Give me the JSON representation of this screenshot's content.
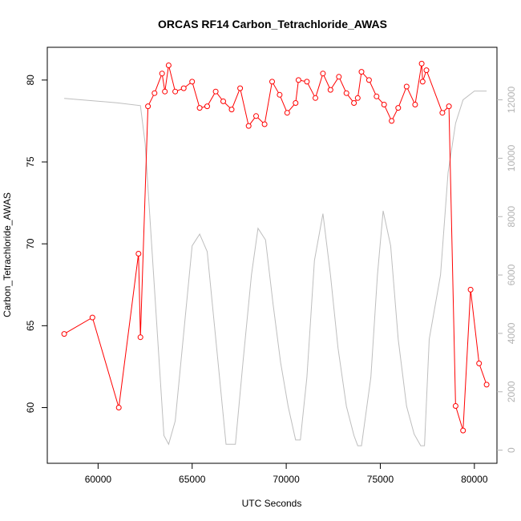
{
  "chart_data": {
    "type": "line",
    "title": "ORCAS RF14 Carbon_Tetrachloride_AWAS",
    "xlabel": "UTC Seconds",
    "ylabel": "Carbon_Tetrachloride_AWAS",
    "xlim": [
      57300,
      81200
    ],
    "ylim": [
      56.6,
      82.0
    ],
    "y2lim": [
      -450,
      13800
    ],
    "x_ticks": [
      60000,
      65000,
      70000,
      75000,
      80000
    ],
    "y_ticks": [
      60,
      65,
      70,
      75,
      80
    ],
    "y2_ticks": [
      0,
      2000,
      4000,
      6000,
      8000,
      10000,
      12000
    ],
    "colors": {
      "primary": "#ff0000",
      "secondary": "#bebebe"
    },
    "series": [
      {
        "role": "primary",
        "style": "line-points",
        "x": [
          58200,
          59700,
          61100,
          62150,
          62250,
          62650,
          63000,
          63400,
          63550,
          63750,
          64100,
          64550,
          65000,
          65400,
          65800,
          66250,
          66650,
          67100,
          67550,
          68000,
          68400,
          68850,
          69250,
          69650,
          70050,
          70500,
          70650,
          71100,
          71550,
          71950,
          72350,
          72800,
          73200,
          73600,
          73800,
          74000,
          74400,
          74800,
          75200,
          75600,
          75950,
          76400,
          76850,
          77200,
          77250,
          77450,
          78300,
          78650,
          79000,
          79400,
          79800,
          80250,
          80650
        ],
        "y": [
          64.5,
          65.5,
          60.0,
          69.4,
          64.3,
          78.4,
          79.2,
          80.4,
          79.3,
          80.9,
          79.3,
          79.5,
          79.9,
          78.3,
          78.4,
          79.3,
          78.7,
          78.2,
          79.5,
          77.2,
          77.8,
          77.3,
          79.9,
          79.1,
          78.0,
          78.6,
          80.0,
          79.9,
          78.9,
          80.4,
          79.4,
          80.2,
          79.2,
          78.6,
          78.9,
          80.5,
          80.0,
          79.0,
          78.5,
          77.5,
          78.3,
          79.6,
          78.5,
          81.0,
          79.9,
          80.6,
          78.0,
          78.4,
          60.1,
          58.6,
          67.2,
          62.7,
          61.4
        ]
      },
      {
        "role": "secondary",
        "style": "line",
        "x": [
          58200,
          61000,
          62250,
          62500,
          63000,
          63500,
          63750,
          64100,
          65000,
          65400,
          65800,
          66300,
          66800,
          67300,
          67700,
          68150,
          68500,
          68900,
          69300,
          69700,
          70100,
          70500,
          70750,
          71100,
          71500,
          71950,
          72350,
          72750,
          73200,
          73600,
          73800,
          74000,
          74500,
          74850,
          75150,
          75550,
          75950,
          76400,
          76800,
          77150,
          77350,
          77600,
          78200,
          78600,
          79000,
          79400,
          80000,
          80650
        ],
        "y": [
          12050,
          11900,
          11800,
          10500,
          5500,
          500,
          200,
          1000,
          7000,
          7400,
          6800,
          3500,
          200,
          200,
          3000,
          6000,
          7600,
          7200,
          5000,
          3000,
          1500,
          350,
          350,
          2500,
          6500,
          8100,
          6000,
          3500,
          1500,
          500,
          150,
          150,
          2500,
          6000,
          8200,
          7000,
          3800,
          1500,
          550,
          150,
          150,
          3800,
          6000,
          9500,
          11200,
          12000,
          12300,
          12300
        ]
      }
    ]
  }
}
